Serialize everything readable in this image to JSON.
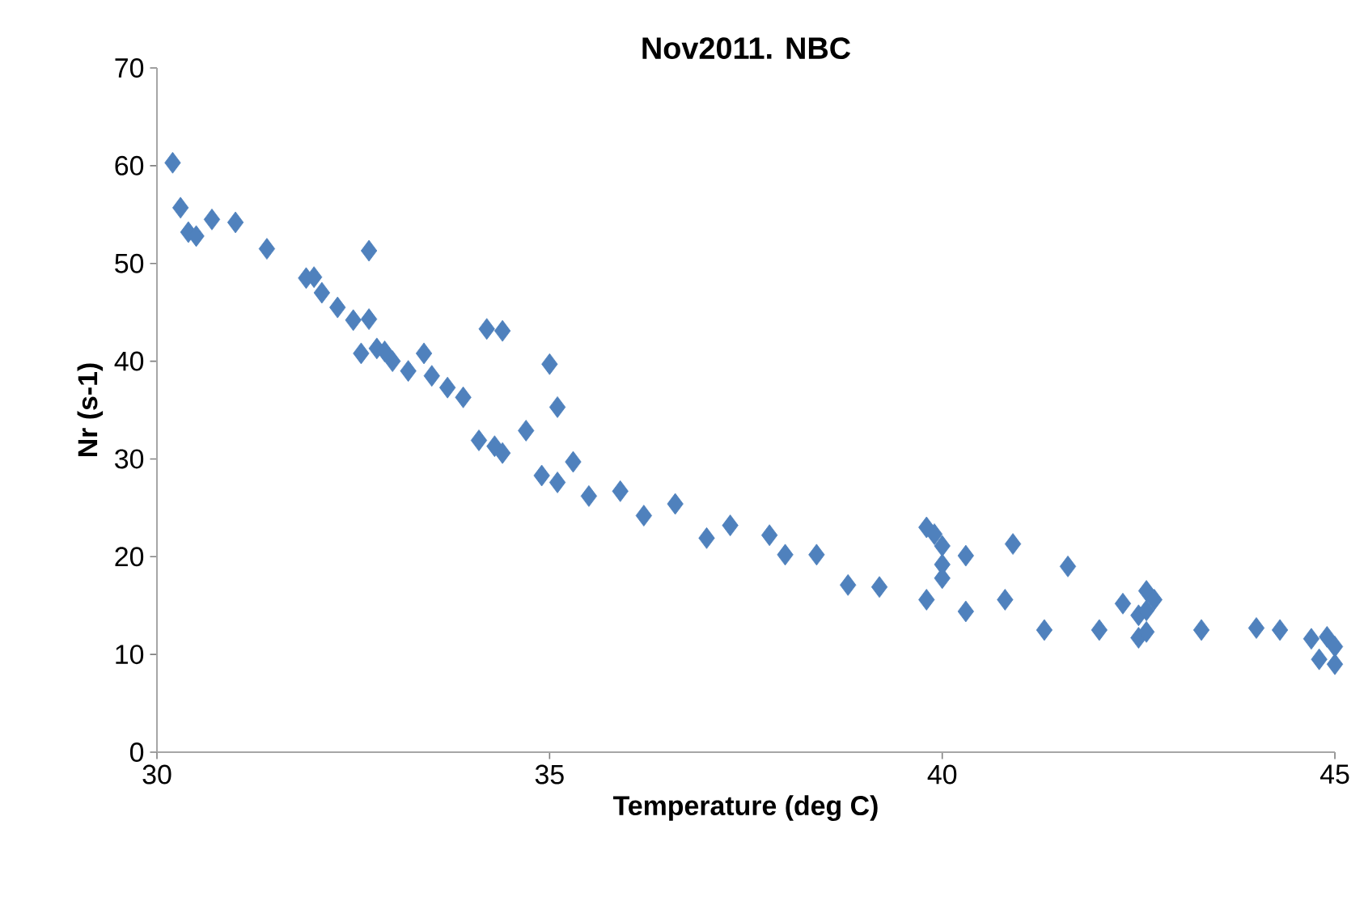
{
  "chart_data": {
    "type": "scatter",
    "title": "Nov2011.  NBC",
    "xlabel": "Temperature (deg C)",
    "ylabel": "Nr (s-1)",
    "x": [
      30.2,
      30.3,
      30.4,
      30.5,
      30.7,
      31.0,
      31.4,
      31.9,
      32.0,
      32.1,
      32.3,
      32.5,
      32.6,
      32.7,
      32.7,
      32.8,
      32.9,
      33.0,
      33.2,
      33.4,
      33.5,
      33.7,
      33.9,
      34.1,
      34.2,
      34.3,
      34.4,
      34.4,
      34.7,
      34.9,
      35.0,
      35.1,
      35.1,
      35.3,
      35.5,
      35.9,
      36.2,
      36.6,
      37.0,
      37.3,
      37.8,
      38.0,
      38.4,
      38.8,
      39.2,
      39.8,
      39.8,
      39.9,
      40.0,
      40.0,
      40.0,
      40.3,
      40.3,
      40.8,
      40.9,
      41.3,
      41.6,
      42.0,
      42.3,
      42.5,
      42.5,
      42.6,
      42.6,
      42.6,
      42.7,
      43.3,
      44.0,
      44.3,
      44.7,
      44.8,
      44.9,
      45.0,
      45.0
    ],
    "values": [
      60.3,
      55.7,
      53.2,
      52.8,
      54.5,
      54.2,
      51.5,
      48.5,
      48.6,
      47.0,
      45.5,
      44.2,
      40.8,
      44.3,
      51.3,
      41.3,
      41.0,
      40.0,
      39.0,
      40.8,
      38.5,
      37.3,
      36.3,
      31.9,
      43.3,
      31.3,
      30.6,
      43.1,
      32.9,
      28.3,
      39.7,
      35.3,
      27.6,
      29.7,
      26.2,
      26.7,
      24.2,
      25.4,
      21.9,
      23.2,
      22.2,
      20.2,
      20.2,
      17.1,
      16.9,
      23.0,
      15.6,
      22.3,
      21.1,
      19.2,
      17.8,
      20.1,
      14.4,
      15.6,
      21.3,
      12.5,
      19.0,
      12.5,
      15.2,
      14.0,
      11.7,
      16.5,
      14.5,
      12.3,
      15.6,
      12.5,
      12.7,
      12.5,
      11.6,
      9.5,
      11.8,
      10.8,
      9.0
    ],
    "color": "#4f81bd",
    "marker": "diamond",
    "xlim": [
      30,
      45
    ],
    "xticks": [
      30,
      35,
      40,
      45
    ],
    "ylim": [
      0,
      70
    ],
    "yticks": [
      0,
      10,
      20,
      30,
      40,
      50,
      60,
      70
    ]
  }
}
